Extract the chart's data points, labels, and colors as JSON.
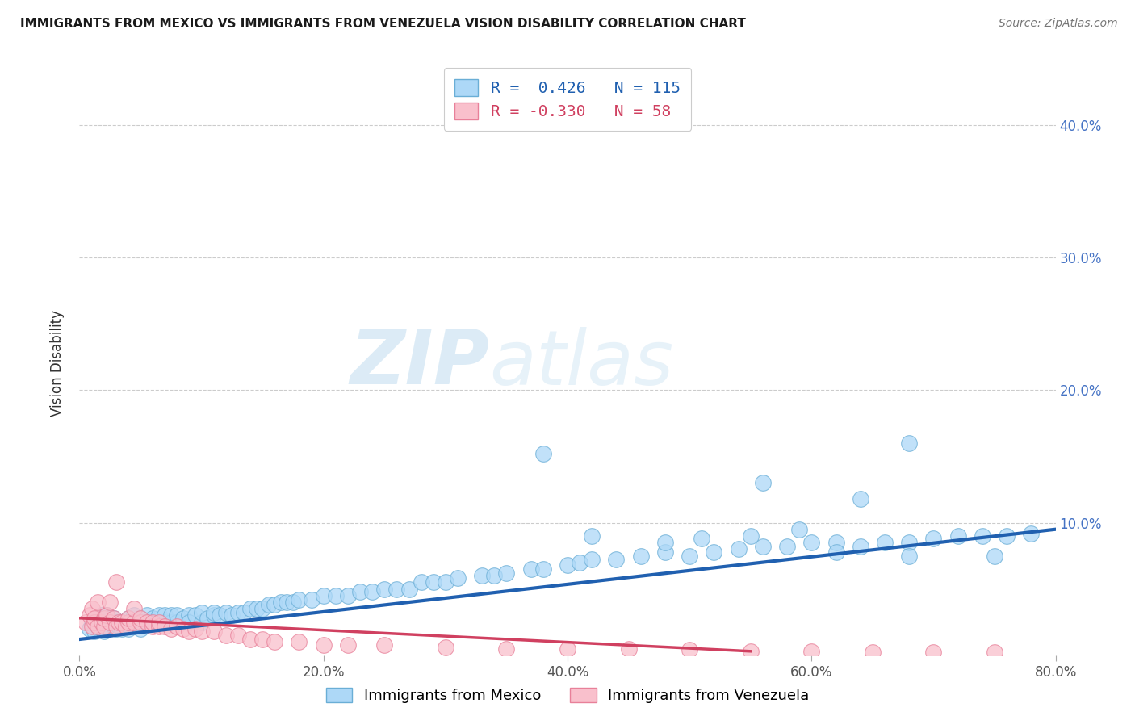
{
  "title": "IMMIGRANTS FROM MEXICO VS IMMIGRANTS FROM VENEZUELA VISION DISABILITY CORRELATION CHART",
  "source": "Source: ZipAtlas.com",
  "ylabel": "Vision Disability",
  "xlim": [
    0.0,
    0.8
  ],
  "ylim": [
    0.0,
    0.44
  ],
  "xticks": [
    0.0,
    0.2,
    0.4,
    0.6,
    0.8
  ],
  "xtick_labels": [
    "0.0%",
    "20.0%",
    "40.0%",
    "60.0%",
    "80.0%"
  ],
  "yticks": [
    0.0,
    0.1,
    0.2,
    0.3,
    0.4
  ],
  "ytick_labels": [
    "",
    "10.0%",
    "20.0%",
    "30.0%",
    "40.0%"
  ],
  "mexico_color": "#ADD8F7",
  "mexico_edge_color": "#6AAED6",
  "venezuela_color": "#F9C0CC",
  "venezuela_edge_color": "#E88099",
  "mexico_R": 0.426,
  "mexico_N": 115,
  "venezuela_R": -0.33,
  "venezuela_N": 58,
  "mexico_line_color": "#2060B0",
  "venezuela_line_color": "#D04060",
  "watermark_zip": "ZIP",
  "watermark_atlas": "atlas",
  "background_color": "#FFFFFF",
  "grid_color": "#CCCCCC",
  "mexico_line_x": [
    0.0,
    0.8
  ],
  "mexico_line_y": [
    0.012,
    0.095
  ],
  "venezuela_line_x": [
    0.0,
    0.55
  ],
  "venezuela_line_y": [
    0.028,
    0.003
  ],
  "legend_mexico": "Immigrants from Mexico",
  "legend_venezuela": "Immigrants from Venezuela",
  "mexico_x": [
    0.008,
    0.01,
    0.012,
    0.015,
    0.015,
    0.018,
    0.018,
    0.02,
    0.02,
    0.022,
    0.022,
    0.025,
    0.025,
    0.028,
    0.028,
    0.03,
    0.03,
    0.032,
    0.035,
    0.035,
    0.038,
    0.04,
    0.04,
    0.042,
    0.045,
    0.045,
    0.048,
    0.05,
    0.05,
    0.055,
    0.055,
    0.06,
    0.06,
    0.065,
    0.065,
    0.07,
    0.07,
    0.075,
    0.075,
    0.08,
    0.08,
    0.085,
    0.09,
    0.09,
    0.095,
    0.1,
    0.1,
    0.105,
    0.11,
    0.11,
    0.115,
    0.12,
    0.125,
    0.13,
    0.135,
    0.14,
    0.145,
    0.15,
    0.155,
    0.16,
    0.165,
    0.17,
    0.175,
    0.18,
    0.19,
    0.2,
    0.21,
    0.22,
    0.23,
    0.24,
    0.25,
    0.26,
    0.27,
    0.28,
    0.29,
    0.3,
    0.31,
    0.33,
    0.34,
    0.35,
    0.37,
    0.38,
    0.4,
    0.41,
    0.42,
    0.44,
    0.46,
    0.48,
    0.5,
    0.52,
    0.54,
    0.56,
    0.58,
    0.6,
    0.62,
    0.64,
    0.66,
    0.68,
    0.7,
    0.72,
    0.74,
    0.76,
    0.78,
    0.56,
    0.64,
    0.68,
    0.38,
    0.42,
    0.48,
    0.51,
    0.55,
    0.59,
    0.62,
    0.68,
    0.75
  ],
  "mexico_y": [
    0.02,
    0.025,
    0.018,
    0.022,
    0.028,
    0.02,
    0.03,
    0.025,
    0.018,
    0.022,
    0.03,
    0.02,
    0.025,
    0.022,
    0.028,
    0.02,
    0.025,
    0.022,
    0.02,
    0.025,
    0.022,
    0.02,
    0.028,
    0.025,
    0.022,
    0.03,
    0.025,
    0.02,
    0.028,
    0.025,
    0.03,
    0.025,
    0.028,
    0.025,
    0.03,
    0.025,
    0.03,
    0.025,
    0.03,
    0.025,
    0.03,
    0.028,
    0.03,
    0.025,
    0.03,
    0.025,
    0.032,
    0.028,
    0.03,
    0.032,
    0.03,
    0.032,
    0.03,
    0.032,
    0.032,
    0.035,
    0.035,
    0.035,
    0.038,
    0.038,
    0.04,
    0.04,
    0.04,
    0.042,
    0.042,
    0.045,
    0.045,
    0.045,
    0.048,
    0.048,
    0.05,
    0.05,
    0.05,
    0.055,
    0.055,
    0.055,
    0.058,
    0.06,
    0.06,
    0.062,
    0.065,
    0.065,
    0.068,
    0.07,
    0.072,
    0.072,
    0.075,
    0.078,
    0.075,
    0.078,
    0.08,
    0.082,
    0.082,
    0.085,
    0.085,
    0.082,
    0.085,
    0.085,
    0.088,
    0.09,
    0.09,
    0.09,
    0.092,
    0.13,
    0.118,
    0.16,
    0.152,
    0.09,
    0.085,
    0.088,
    0.09,
    0.095,
    0.078,
    0.075,
    0.075
  ],
  "venezuela_x": [
    0.005,
    0.008,
    0.01,
    0.01,
    0.012,
    0.012,
    0.015,
    0.015,
    0.018,
    0.02,
    0.02,
    0.022,
    0.025,
    0.025,
    0.028,
    0.03,
    0.03,
    0.032,
    0.035,
    0.038,
    0.04,
    0.04,
    0.045,
    0.045,
    0.05,
    0.05,
    0.055,
    0.06,
    0.06,
    0.065,
    0.065,
    0.07,
    0.075,
    0.08,
    0.085,
    0.09,
    0.095,
    0.1,
    0.11,
    0.12,
    0.13,
    0.14,
    0.15,
    0.16,
    0.18,
    0.2,
    0.22,
    0.25,
    0.3,
    0.35,
    0.4,
    0.45,
    0.5,
    0.55,
    0.6,
    0.65,
    0.7,
    0.75
  ],
  "venezuela_y": [
    0.025,
    0.03,
    0.022,
    0.035,
    0.025,
    0.028,
    0.04,
    0.022,
    0.025,
    0.022,
    0.028,
    0.03,
    0.04,
    0.025,
    0.028,
    0.055,
    0.022,
    0.025,
    0.025,
    0.022,
    0.025,
    0.028,
    0.025,
    0.035,
    0.025,
    0.028,
    0.025,
    0.022,
    0.025,
    0.022,
    0.025,
    0.022,
    0.02,
    0.022,
    0.02,
    0.018,
    0.02,
    0.018,
    0.018,
    0.015,
    0.015,
    0.012,
    0.012,
    0.01,
    0.01,
    0.008,
    0.008,
    0.008,
    0.006,
    0.005,
    0.005,
    0.005,
    0.004,
    0.003,
    0.003,
    0.002,
    0.002,
    0.002
  ]
}
